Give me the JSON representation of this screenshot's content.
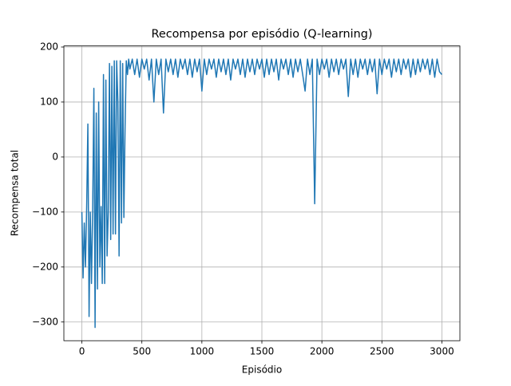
{
  "chart_data": {
    "type": "line",
    "title": "Recompensa por episódio (Q-learning)",
    "xlabel": "Episódio",
    "ylabel": "Recompensa total",
    "color": "#1f77b4",
    "grid": true,
    "xlim": [
      -150,
      3150
    ],
    "ylim": [
      -334,
      202
    ],
    "xticks": [
      0,
      500,
      1000,
      1500,
      2000,
      2500,
      3000
    ],
    "yticks": [
      {
        "value": -300,
        "label": "−300"
      },
      {
        "value": -200,
        "label": "−200"
      },
      {
        "value": -100,
        "label": "−100"
      },
      0,
      100,
      200
    ],
    "x": [
      0,
      10,
      20,
      30,
      40,
      50,
      60,
      70,
      80,
      90,
      100,
      110,
      120,
      130,
      140,
      150,
      160,
      170,
      180,
      190,
      200,
      210,
      220,
      230,
      240,
      250,
      260,
      270,
      280,
      290,
      300,
      310,
      320,
      330,
      340,
      350,
      360,
      370,
      380,
      390,
      400,
      420,
      440,
      460,
      480,
      500,
      520,
      540,
      560,
      580,
      600,
      620,
      640,
      660,
      680,
      700,
      720,
      740,
      760,
      780,
      800,
      820,
      840,
      860,
      880,
      900,
      920,
      940,
      960,
      980,
      1000,
      1020,
      1040,
      1060,
      1080,
      1100,
      1120,
      1140,
      1160,
      1180,
      1200,
      1220,
      1240,
      1260,
      1280,
      1300,
      1320,
      1340,
      1360,
      1380,
      1400,
      1420,
      1440,
      1460,
      1480,
      1500,
      1520,
      1540,
      1560,
      1580,
      1600,
      1620,
      1640,
      1660,
      1680,
      1700,
      1720,
      1740,
      1760,
      1780,
      1800,
      1820,
      1840,
      1860,
      1880,
      1900,
      1920,
      1940,
      1960,
      1980,
      2000,
      2020,
      2040,
      2060,
      2080,
      2100,
      2120,
      2140,
      2160,
      2180,
      2200,
      2220,
      2240,
      2260,
      2280,
      2300,
      2320,
      2340,
      2360,
      2380,
      2400,
      2420,
      2440,
      2460,
      2480,
      2500,
      2520,
      2540,
      2560,
      2580,
      2600,
      2620,
      2640,
      2660,
      2680,
      2700,
      2720,
      2740,
      2760,
      2780,
      2800,
      2820,
      2840,
      2860,
      2880,
      2900,
      2920,
      2940,
      2960,
      2980,
      3000
    ],
    "values": [
      -100,
      -220,
      -120,
      -200,
      -90,
      60,
      -290,
      -100,
      -230,
      -95,
      125,
      -310,
      80,
      -240,
      100,
      -200,
      -90,
      -230,
      150,
      -230,
      140,
      -180,
      -100,
      170,
      -150,
      165,
      -140,
      175,
      -140,
      175,
      100,
      -180,
      175,
      -120,
      170,
      -110,
      55,
      175,
      150,
      178,
      160,
      178,
      150,
      178,
      145,
      178,
      160,
      178,
      140,
      178,
      100,
      178,
      150,
      178,
      80,
      178,
      155,
      178,
      150,
      178,
      145,
      178,
      160,
      178,
      150,
      178,
      145,
      178,
      155,
      178,
      120,
      178,
      150,
      178,
      160,
      178,
      145,
      178,
      155,
      178,
      150,
      178,
      140,
      178,
      160,
      178,
      150,
      178,
      145,
      178,
      155,
      178,
      150,
      178,
      160,
      178,
      145,
      178,
      150,
      178,
      155,
      178,
      140,
      178,
      160,
      178,
      150,
      178,
      145,
      178,
      155,
      178,
      150,
      120,
      178,
      150,
      178,
      -85,
      178,
      150,
      178,
      160,
      178,
      145,
      178,
      155,
      178,
      150,
      178,
      160,
      178,
      110,
      178,
      150,
      178,
      145,
      178,
      160,
      178,
      150,
      178,
      155,
      178,
      115,
      178,
      150,
      178,
      160,
      178,
      145,
      178,
      155,
      178,
      150,
      178,
      160,
      178,
      145,
      178,
      150,
      178,
      155,
      178,
      160,
      178,
      150,
      178,
      145,
      178,
      155,
      150
    ]
  }
}
